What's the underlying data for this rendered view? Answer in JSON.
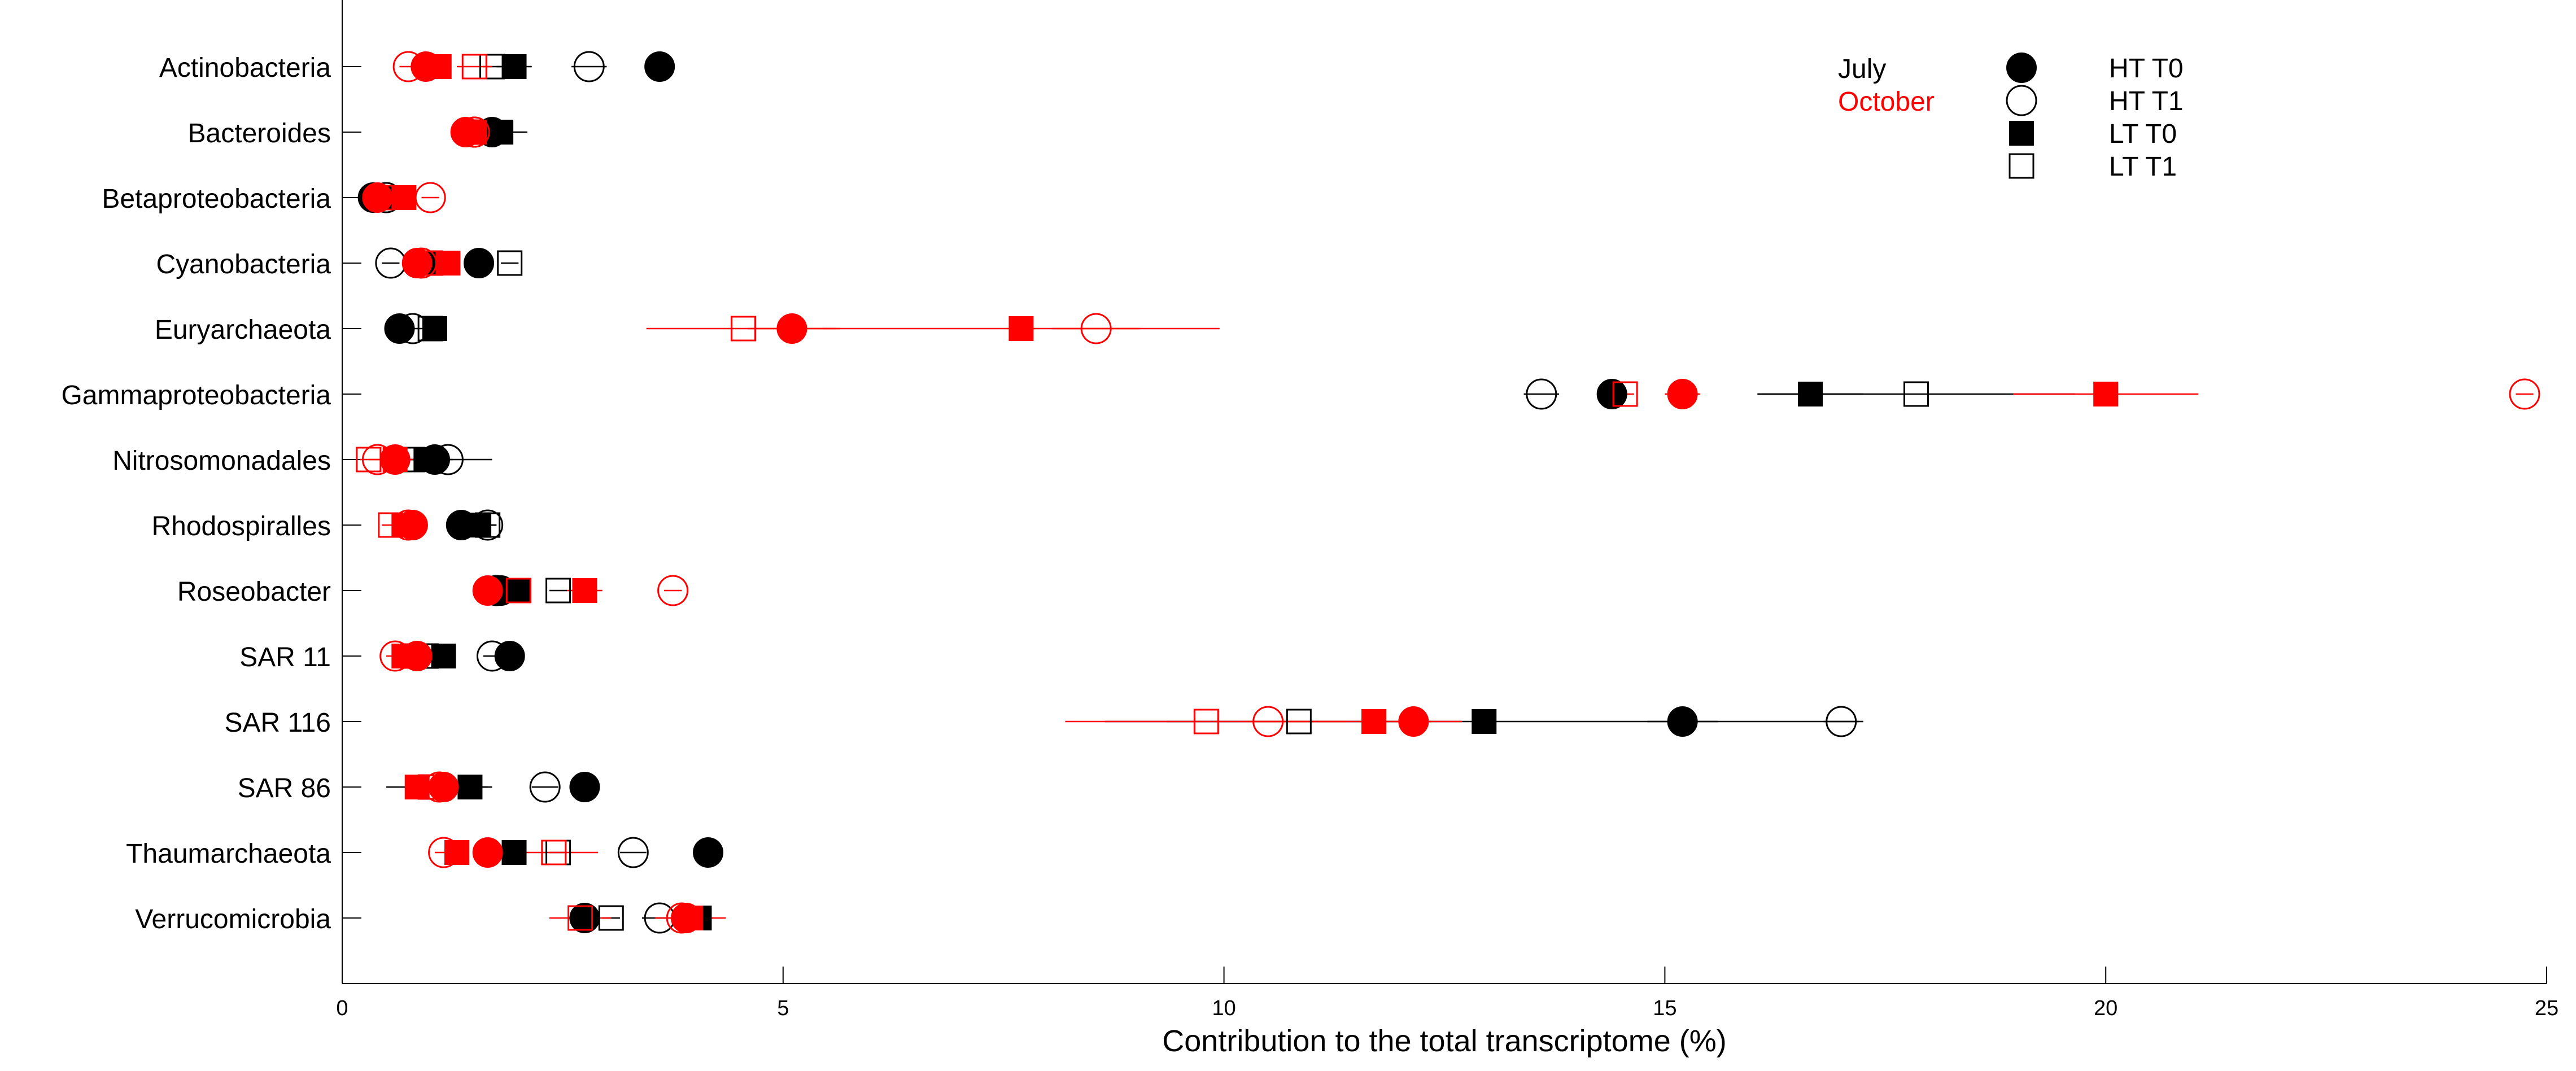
{
  "chart_data": {
    "type": "scatter",
    "title": "",
    "xlabel": "Contribution to the total transcriptome (%)",
    "ylabel": "",
    "xlim": [
      0,
      25
    ],
    "xticks": [
      0,
      5,
      10,
      15,
      20,
      25
    ],
    "grid": false,
    "categories": [
      "Actinobacteria",
      "Bacteroides",
      "Betaproteobacteria",
      "Cyanobacteria",
      "Euryarchaeota",
      "Gammaproteobacteria",
      "Nitrosomonadales",
      "Rhodospiralles",
      "Roseobacter",
      "SAR 11",
      "SAR 116",
      "SAR 86",
      "Thaumarchaeota",
      "Verrucomicrobia"
    ],
    "months": [
      {
        "name": "July",
        "color": "#000000"
      },
      {
        "name": "October",
        "color": "#ff0000"
      }
    ],
    "treatments": [
      {
        "name": "HT T0",
        "marker": "filled-circle"
      },
      {
        "name": "HT T1",
        "marker": "open-circle"
      },
      {
        "name": "LT T0",
        "marker": "filled-square"
      },
      {
        "name": "LT T1",
        "marker": "open-square"
      }
    ],
    "legend_position": "top-right",
    "series": [
      {
        "month": "July",
        "treatment": "HT T0",
        "values": [
          3.6,
          1.7,
          0.35,
          1.55,
          0.65,
          14.4,
          1.05,
          1.35,
          1.8,
          1.9,
          15.2,
          2.75,
          4.15,
          2.75
        ],
        "err": [
          0.1,
          0.1,
          0.1,
          0.1,
          0.05,
          0.15,
          0.1,
          0.1,
          0.1,
          0.05,
          0.4,
          0.1,
          0.1,
          0.1
        ]
      },
      {
        "month": "July",
        "treatment": "HT T1",
        "values": [
          2.8,
          1.5,
          0.5,
          0.55,
          0.8,
          13.6,
          1.2,
          1.65,
          1.75,
          1.7,
          17.0,
          2.3,
          3.3,
          3.6
        ],
        "err": [
          0.2,
          0.1,
          0.1,
          0.1,
          0.1,
          0.2,
          0.5,
          0.1,
          0.1,
          0.1,
          0.2,
          0.15,
          0.15,
          0.2
        ]
      },
      {
        "month": "July",
        "treatment": "LT T0",
        "values": [
          1.95,
          1.8,
          0.6,
          1.0,
          1.05,
          16.65,
          0.95,
          1.55,
          2.0,
          1.15,
          12.95,
          1.45,
          1.95,
          4.05
        ],
        "err": [
          0.2,
          0.3,
          0.1,
          0.2,
          0.1,
          0.6,
          0.3,
          0.1,
          0.1,
          0.1,
          4.3,
          0.2,
          0.1,
          0.15
        ]
      },
      {
        "month": "July",
        "treatment": "LT T1",
        "values": [
          1.7,
          1.5,
          0.45,
          1.9,
          1.0,
          17.85,
          0.8,
          1.65,
          2.45,
          0.95,
          10.85,
          1.1,
          2.45,
          3.05
        ],
        "err": [
          0.1,
          0.1,
          0.1,
          0.1,
          0.1,
          1.8,
          0.1,
          0.1,
          0.1,
          0.1,
          1.5,
          0.6,
          0.1,
          0.1
        ]
      },
      {
        "month": "October",
        "treatment": "HT T0",
        "values": [
          0.95,
          1.4,
          0.4,
          0.85,
          5.1,
          15.2,
          0.6,
          0.8,
          1.65,
          0.85,
          12.15,
          1.15,
          1.65,
          3.9
        ],
        "err": [
          0.15,
          0.1,
          0.1,
          0.1,
          0.5,
          0.2,
          0.1,
          0.1,
          0.1,
          0.1,
          0.2,
          0.2,
          0.1,
          0.1
        ]
      },
      {
        "month": "October",
        "treatment": "HT T1",
        "values": [
          0.75,
          1.5,
          1.0,
          0.9,
          8.55,
          24.75,
          0.4,
          0.75,
          3.75,
          0.6,
          10.5,
          1.1,
          1.15,
          3.85
        ],
        "err": [
          0.1,
          0.1,
          0.1,
          0.1,
          0.5,
          0.1,
          0.1,
          0.1,
          0.1,
          0.1,
          0.3,
          0.1,
          0.1,
          0.1
        ]
      },
      {
        "month": "October",
        "treatment": "LT T0",
        "values": [
          1.1,
          1.5,
          0.7,
          1.2,
          7.7,
          20.0,
          0.6,
          0.7,
          2.75,
          0.7,
          11.7,
          0.85,
          1.3,
          3.95
        ],
        "err": [
          0.1,
          0.1,
          0.1,
          0.1,
          2.25,
          1.05,
          0.2,
          0.1,
          0.2,
          0.1,
          1.0,
          0.1,
          0.1,
          0.4
        ]
      },
      {
        "month": "October",
        "treatment": "LT T1",
        "values": [
          1.5,
          1.45,
          0.45,
          1.0,
          4.55,
          14.55,
          0.3,
          0.55,
          2.0,
          0.8,
          9.8,
          1.0,
          2.4,
          2.7
        ],
        "err": [
          0.2,
          0.1,
          0.1,
          0.1,
          1.1,
          0.1,
          0.1,
          0.1,
          0.1,
          0.1,
          1.6,
          0.1,
          0.5,
          0.35
        ]
      }
    ]
  }
}
